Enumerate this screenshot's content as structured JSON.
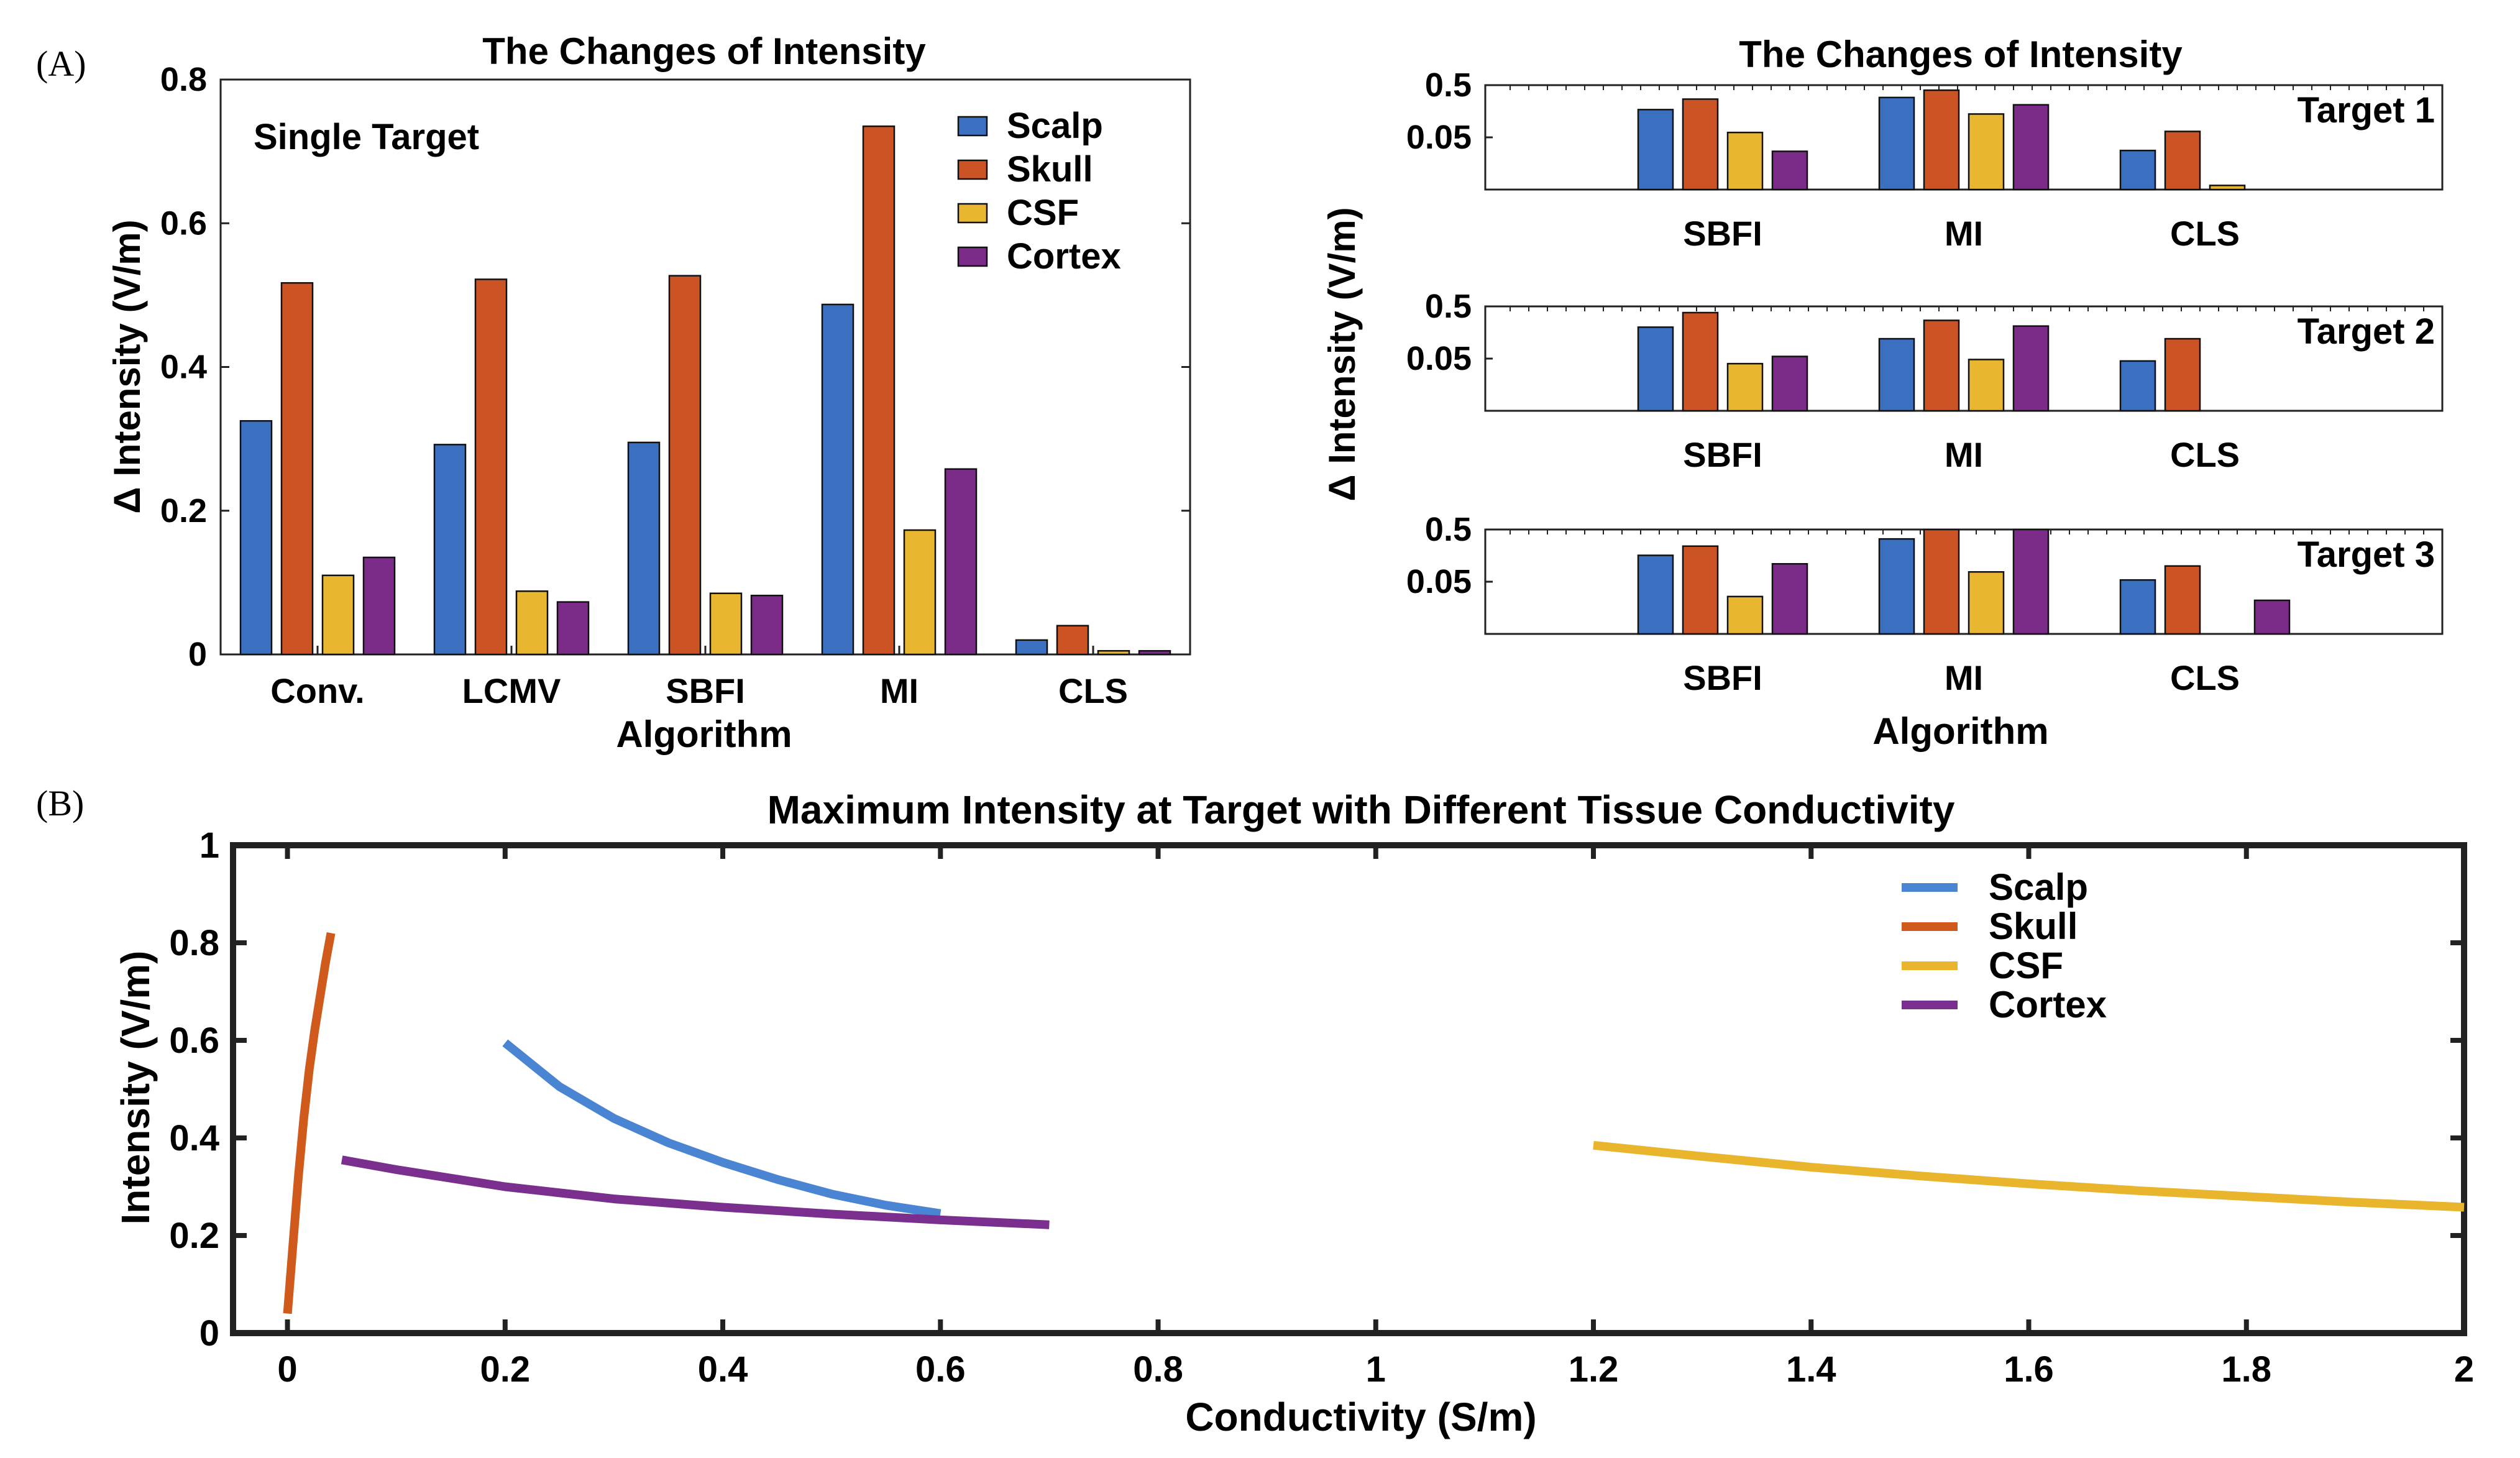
{
  "panel_labels": {
    "a": "(A)",
    "b": "(B)"
  },
  "colors": {
    "Scalp": "#3b6fbf",
    "Skull": "#cc5424",
    "CSF": "#e8b630",
    "Cortex": "#7a2c88",
    "Scalp_line": "#4a85d4",
    "Skull_line": "#cf5a1c",
    "CSF_line": "#e9b52c",
    "Cortex_line": "#7a2f8f"
  },
  "chart_data": [
    {
      "type": "bar",
      "title": "The Changes of Intensity",
      "annotation": "Single Target",
      "xlabel": "Algorithm",
      "ylabel": "Δ Intensity (V/m)",
      "ylim": [
        0,
        0.8
      ],
      "yticks": [
        "0",
        "0.2",
        "0.4",
        "0.6",
        "0.8"
      ],
      "legend": "top-right",
      "categories": [
        "Conv.",
        "LCMV",
        "SBFI",
        "MI",
        "CLS"
      ],
      "series": [
        {
          "name": "Scalp",
          "values": [
            0.325,
            0.292,
            0.295,
            0.487,
            0.02
          ]
        },
        {
          "name": "Skull",
          "values": [
            0.517,
            0.522,
            0.527,
            0.735,
            0.04
          ]
        },
        {
          "name": "CSF",
          "values": [
            0.11,
            0.088,
            0.085,
            0.173,
            0.005
          ]
        },
        {
          "name": "Cortex",
          "values": [
            0.135,
            0.073,
            0.082,
            0.258,
            0.005
          ]
        }
      ]
    },
    {
      "type": "bar",
      "title": "The Changes of Intensity",
      "xlabel": "Algorithm",
      "ylabel": "Δ Intensity (V/m)",
      "yscale": "log",
      "ylim": [
        0.005,
        0.5
      ],
      "yticks": [
        "0.5",
        "0.05"
      ],
      "categories": [
        "SBFI",
        "MI",
        "CLS"
      ],
      "subplots": [
        {
          "label": "Target 1",
          "series": [
            {
              "name": "Scalp",
              "values": [
                0.17,
                0.29,
                0.028
              ]
            },
            {
              "name": "Skull",
              "values": [
                0.27,
                0.4,
                0.065
              ]
            },
            {
              "name": "CSF",
              "values": [
                0.062,
                0.14,
                0.006
              ]
            },
            {
              "name": "Cortex",
              "values": [
                0.027,
                0.21,
                0.0
              ]
            }
          ]
        },
        {
          "label": "Target 2",
          "series": [
            {
              "name": "Scalp",
              "values": [
                0.2,
                0.12,
                0.045
              ]
            },
            {
              "name": "Skull",
              "values": [
                0.38,
                0.27,
                0.12
              ]
            },
            {
              "name": "CSF",
              "values": [
                0.04,
                0.048,
                0.0
              ]
            },
            {
              "name": "Cortex",
              "values": [
                0.055,
                0.21,
                0.0
              ]
            }
          ]
        },
        {
          "label": "Target 3",
          "series": [
            {
              "name": "Scalp",
              "values": [
                0.16,
                0.33,
                0.054
              ]
            },
            {
              "name": "Skull",
              "values": [
                0.24,
                0.51,
                0.1
              ]
            },
            {
              "name": "CSF",
              "values": [
                0.026,
                0.077,
                0.0
              ]
            },
            {
              "name": "Cortex",
              "values": [
                0.11,
                0.5,
                0.022
              ]
            }
          ]
        }
      ]
    },
    {
      "type": "line",
      "title": "Maximum Intensity at Target with Different Tissue Conductivity",
      "xlabel": "Conductivity (S/m)",
      "ylabel": "Intensity (V/m)",
      "xlim": [
        -0.05,
        2.0
      ],
      "ylim": [
        0,
        1
      ],
      "xticks": [
        "0",
        "0.2",
        "0.4",
        "0.6",
        "0.8",
        "1",
        "1.2",
        "1.4",
        "1.6",
        "1.8",
        "2"
      ],
      "yticks": [
        "0",
        "0.2",
        "0.4",
        "0.6",
        "0.8",
        "1"
      ],
      "legend": "top-right",
      "series": [
        {
          "name": "Scalp",
          "x": [
            0.2,
            0.25,
            0.3,
            0.35,
            0.4,
            0.45,
            0.5,
            0.55,
            0.6
          ],
          "y": [
            0.595,
            0.505,
            0.44,
            0.39,
            0.35,
            0.315,
            0.285,
            0.262,
            0.245
          ]
        },
        {
          "name": "Skull",
          "x": [
            0.0,
            0.005,
            0.01,
            0.015,
            0.02,
            0.025,
            0.03,
            0.035,
            0.04
          ],
          "y": [
            0.04,
            0.18,
            0.32,
            0.44,
            0.54,
            0.62,
            0.69,
            0.76,
            0.82
          ]
        },
        {
          "name": "CSF",
          "x": [
            1.2,
            1.3,
            1.4,
            1.5,
            1.6,
            1.7,
            1.8,
            1.9,
            2.0
          ],
          "y": [
            0.385,
            0.362,
            0.34,
            0.322,
            0.306,
            0.292,
            0.28,
            0.268,
            0.258
          ]
        },
        {
          "name": "Cortex",
          "x": [
            0.05,
            0.1,
            0.2,
            0.3,
            0.4,
            0.5,
            0.6,
            0.7
          ],
          "y": [
            0.355,
            0.335,
            0.3,
            0.275,
            0.258,
            0.244,
            0.232,
            0.222
          ]
        }
      ]
    }
  ]
}
